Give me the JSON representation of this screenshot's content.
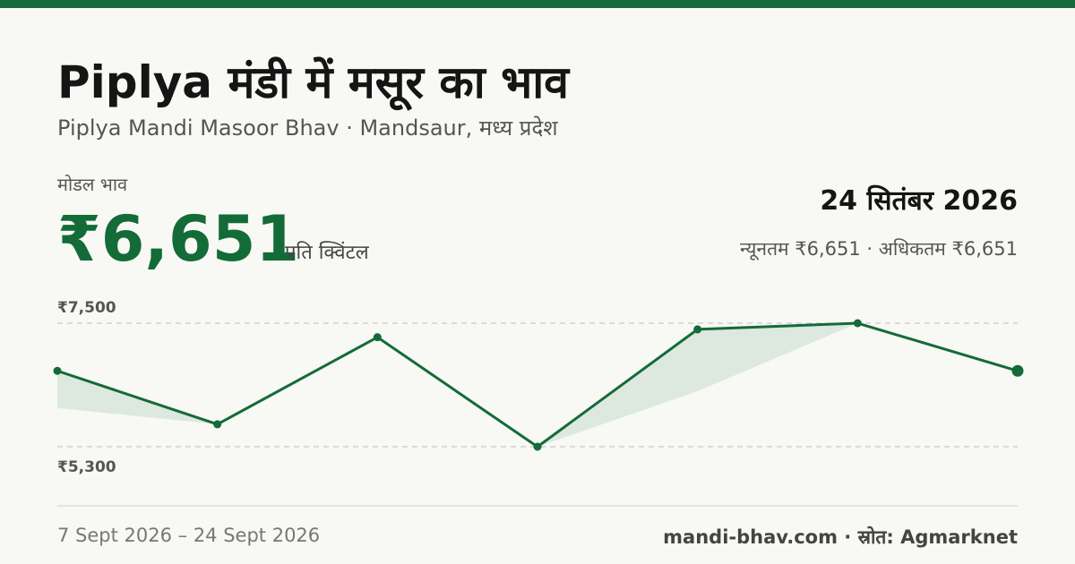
{
  "header": {
    "title": "Piplya मंडी में मसूर का भाव",
    "subtitle": "Piplya Mandi Masoor Bhav · Mandsaur, मध्य प्रदेश"
  },
  "price": {
    "label": "मोडल भाव",
    "value": "₹6,651",
    "unit": "प्रति क्विंटल",
    "date": "24 सितंबर 2026",
    "range": "न्यूनतम ₹6,651 · अधिकतम ₹6,651"
  },
  "footer": {
    "period": "7 Sept 2026 – 24 Sept 2026",
    "source": "mandi-bhav.com · स्रोत: Agmarknet"
  },
  "chart_data": {
    "type": "line",
    "categories": [
      null,
      null,
      null,
      null,
      null,
      null,
      null
    ],
    "series": [
      {
        "color": "#136b38",
        "values": [
          6651,
          5700,
          7250,
          5300,
          7390,
          7500,
          6651
        ]
      },
      {
        "color": "#dde8df",
        "values": [
          5990,
          5700,
          7250,
          5300,
          6290,
          7500,
          6651
        ]
      }
    ],
    "ylim": [
      5300,
      7500
    ],
    "yticks": [
      {
        "value": 7500,
        "label": "₹7,500"
      },
      {
        "value": 5300,
        "label": "₹5,300"
      }
    ],
    "grid": true
  }
}
